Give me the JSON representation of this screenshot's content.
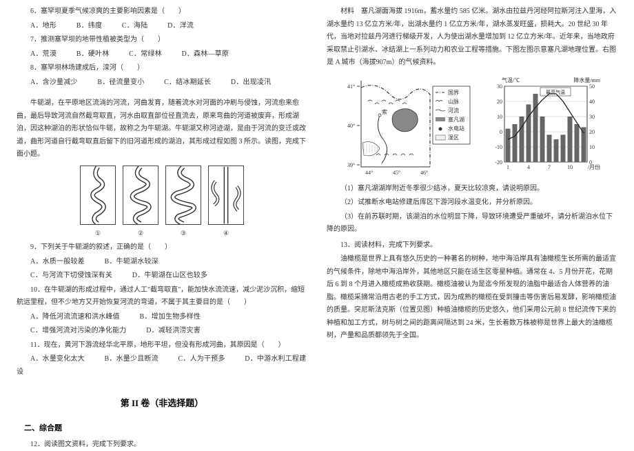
{
  "left": {
    "q6": "6．塞罕坝夏季气候凉爽的主要影响因素是（　　）",
    "q6_opts": {
      "A": "A．地形",
      "B": "B．纬度",
      "C": "C．海陆",
      "D": "D．洋流"
    },
    "q7": "7．推测塞罕坝的地带性植被类型为（　　）",
    "q7_opts": {
      "A": "A．荒漠",
      "B": "B．硬叶林",
      "C": "C．常绿林",
      "D": "D．森林—草原"
    },
    "q8": "8．塞罕坝林场建成后，滦河（　　）",
    "q8_opts": {
      "A": "A．含沙量减少",
      "B": "B．径流量变小",
      "C": "C．结冰期延长",
      "D": "D．出现凌汛"
    },
    "intro1": "牛轭湖，在平原地区流淌的河流，河曲发育，随着流水对河面的冲刷与侵蚀，河流愈来愈曲，最后导致河流自然截弯取直，河水由取直部位径直流去，原来弯曲的河道被废弃，形成湖泊，因这种湖泊的形状恰似牛轭，故称之为牛轭湖。牛轭湖又称河迹湖，是由于河流的变迁或改道，曲形河道自行截弯取直后留下的旧河道形成的湖泊，其形成过程如图 3 所示。读图，完成下面小题。",
    "img_nums": [
      "①",
      "②",
      "③",
      "④"
    ],
    "q9": "9．下列关于牛轭湖的叙述，正确的是（　　）",
    "q9_opts": {
      "A": "A．水质一般较差",
      "B": "B．牛轭湖水较深",
      "C": "C．与河流下切侵蚀深有关",
      "D": "D．牛轭湖在山区也较多"
    },
    "q10": "10．在牛轭湖的形成过程中，通过人工\"截弯取直\"，能加快水流流速，减少泥沙沉积，缩短航运里程，但不少地方又开始恢复河流的弯道，不属于其主要目的是（　　）",
    "q10_opts": {
      "A": "A．降低河流流速和洪水峰值",
      "B": "B．增加生物多样性",
      "C": "C．增强河流对污染的净化能力",
      "D": "D．减轻洪涝灾害"
    },
    "q11": "11．现在，黄河下游流经华北平原，地形平坦，但没有形成河曲，其原因是（　　）",
    "q11_opts": {
      "A": "A．水量变化太大",
      "B": "B．水量少且断流",
      "C": "C．人为干预多",
      "D": "D．中游水利工程建设"
    },
    "section": "第 II 卷（非选择题）",
    "sub": "二、综合题",
    "q12": "12．阅读图文资料，完成下列要求。"
  },
  "right": {
    "material": "材料　塞凡湖面海拔 1916m，蓄水量约 585 亿米。湖水由拉兹丹河经阿拉斯河注入里海，入湖水量约 13 亿立方米/年，出湖水量约 1 亿立方米/年，湖水蒸发旺盛，损耗大。20 世纪 30 年代，当地对拉兹丹河进行梯级开发，人为使出湖水量增加到 12 亿立方米/年。近年来，当地政府采取禁止引湖水、冰结湖上一系列动力和农业工程等措施。下图左图示意塞凡湖地理位置。右图是 A 城市（海拔907m）的气候资料。",
    "map": {
      "lat_ticks": [
        "41°",
        "40°",
        "39°"
      ],
      "lon_ticks": [
        "44°",
        "45°",
        "46°"
      ],
      "legend": [
        "国界",
        "山脉",
        "河流",
        "塞凡湖",
        "水电站",
        "湿区"
      ],
      "city_label": "索",
      "stroke": "#333333",
      "lake_fill": "#888888",
      "hatch_fill": "#aaaaaa",
      "font_size": 8
    },
    "chart": {
      "left_axis_title": "气温/℃",
      "right_axis_title": "降水量/mm",
      "left_ticks": [
        30,
        20,
        10,
        0,
        -10,
        -20
      ],
      "right_ticks": [
        50,
        40,
        30,
        20,
        10,
        0
      ],
      "left_axis_labels": [
        "30",
        "20",
        "10",
        "0",
        "-10",
        "-20"
      ],
      "right_axis_labels": [
        "50",
        "40",
        "30",
        "20",
        "10",
        "0"
      ],
      "x_labels": [
        "1",
        "4",
        "7",
        "10"
      ],
      "x_suffix": "/月份",
      "temps": [
        -5,
        -3,
        3,
        10,
        16,
        21,
        25,
        25,
        20,
        13,
        6,
        -1
      ],
      "precip": [
        22,
        25,
        30,
        38,
        45,
        30,
        18,
        15,
        18,
        30,
        25,
        23
      ],
      "bar_color": "#666666",
      "line_color": "#222222",
      "grid_color": "#aaaaaa",
      "axis_color": "#333333",
      "label_top_left": "最高气温",
      "font_size": 8
    },
    "sub_q1": "（1）塞凡湖湖岸附近冬季很少结冰，夏天比较凉爽，请说明原因。",
    "sub_q2": "（2）试推断水电站修建后库区下游河段水温变化，并分析原因。",
    "sub_q3": "（3）在前苏联时期，该湖泊的水位明显下降，导致环境遭受严重破坏，请分析湖泊水位下降的原因。",
    "q13": "13．阅读材料，完成下列要求。",
    "olive": "油橄榄是世界上具有悠久历史的一种著名的树种，地中海沿岸具有油橄榄生长所需的最适宜的气候条件，除地中海沿岸外，其他地区只能在适生区零星种植。通常在 4、5 月份开花，花期后 6 到 8 个月进入橄榄成熟收获期。橄榄油被认为是迄今所发现的油脂中最适合人体营养的油脂。橄榄采摘常沿用古老的手工方式，因为成熟的橄榄在受到撞击等伤害后易发酵，影响橄榄油的质量。突尼斯法克斯（位置见图）种植油橄榄的历史悠久，他们采用公元前 8 世纪流传下来的种植和加工方式，树与树之间的距离间隔达到 24 米，生长着数万株被称是世界上最大的油橄榄树，产量和品质都领先于全国。"
  },
  "colors": {
    "text": "#333333",
    "border": "#444444"
  }
}
